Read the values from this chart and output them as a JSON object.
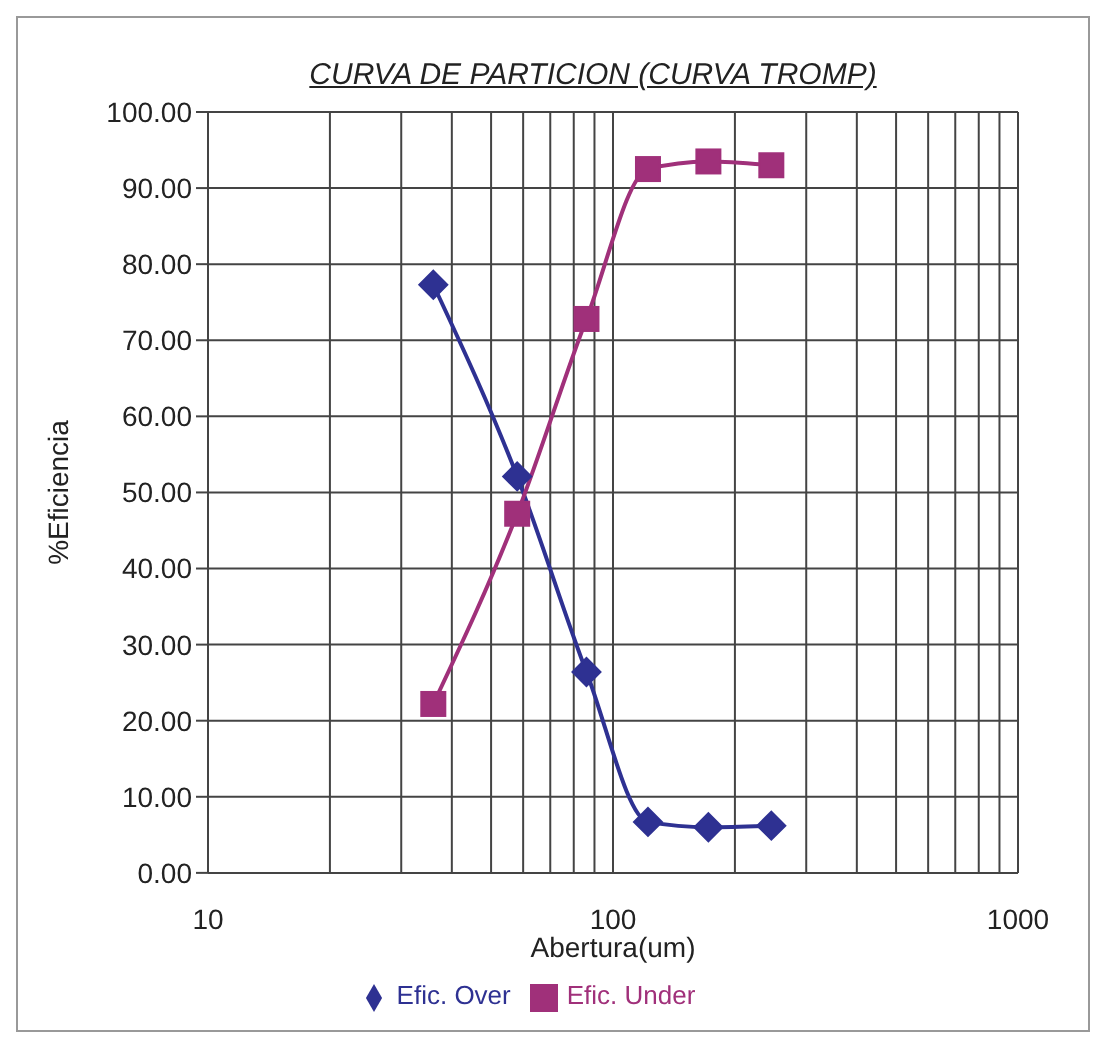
{
  "chart_data": {
    "type": "line",
    "title": "CURVA DE PARTICION (CURVA TROMP)",
    "xlabel": "Abertura(um)",
    "ylabel": "%Eficiencia",
    "x": [
      36,
      58,
      86,
      122,
      172,
      246
    ],
    "series": [
      {
        "name": "Efic. Over",
        "color": "#2e3192",
        "marker": "diamond",
        "values": [
          77.3,
          52.1,
          26.4,
          6.7,
          6.0,
          6.2
        ]
      },
      {
        "name": "Efic. Under",
        "color": "#a0307a",
        "marker": "square",
        "values": [
          22.2,
          47.2,
          72.8,
          92.5,
          93.5,
          93.0
        ]
      }
    ],
    "log": "x",
    "xlim": [
      10,
      1000
    ],
    "xticks": [
      10,
      {
        "value": 20,
        "label": null
      },
      {
        "value": 30,
        "label": null
      },
      {
        "value": 40,
        "label": null
      },
      {
        "value": 50,
        "label": null
      },
      {
        "value": 60,
        "label": null
      },
      {
        "value": 70,
        "label": null
      },
      {
        "value": 80,
        "label": null
      },
      {
        "value": 90,
        "label": null
      },
      100,
      {
        "value": 200,
        "label": null
      },
      {
        "value": 300,
        "label": null
      },
      {
        "value": 400,
        "label": null
      },
      {
        "value": 500,
        "label": null
      },
      {
        "value": 600,
        "label": null
      },
      {
        "value": 700,
        "label": null
      },
      {
        "value": 800,
        "label": null
      },
      {
        "value": 900,
        "label": null
      },
      1000
    ],
    "ylim": [
      0,
      100
    ],
    "yticks": [
      {
        "value": 0,
        "label": "0.00"
      },
      {
        "value": 10,
        "label": "10.00"
      },
      {
        "value": 20,
        "label": "20.00"
      },
      {
        "value": 30,
        "label": "30.00"
      },
      {
        "value": 40,
        "label": "40.00"
      },
      {
        "value": 50,
        "label": "50.00"
      },
      {
        "value": 60,
        "label": "60.00"
      },
      {
        "value": 70,
        "label": "70.00"
      },
      {
        "value": 80,
        "label": "80.00"
      },
      {
        "value": 90,
        "label": "90.00"
      },
      {
        "value": 100,
        "label": "100.00"
      }
    ],
    "grid": true,
    "legend": "bottom",
    "line_style": "solid"
  }
}
